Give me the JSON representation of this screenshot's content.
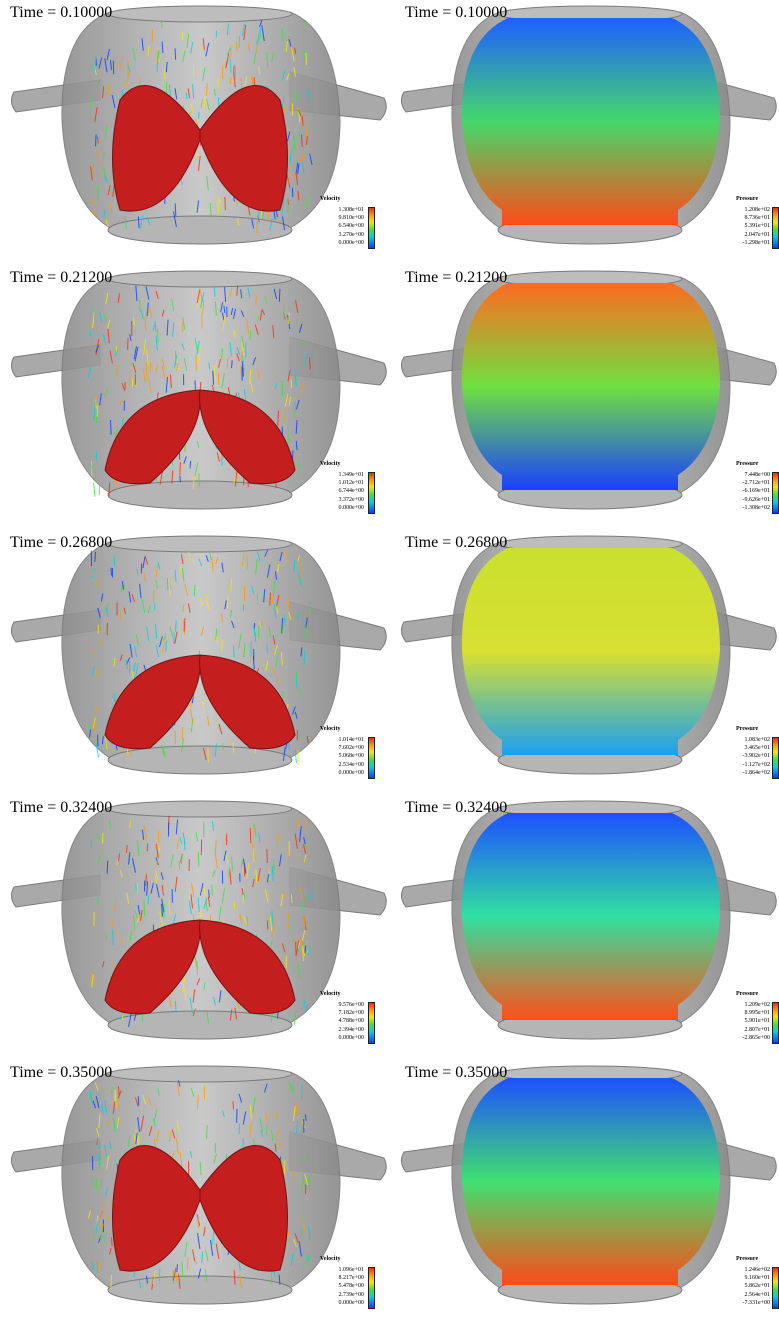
{
  "rows": [
    {
      "time_label": "Time = 0.10000",
      "velocity": {
        "title": "Velocity",
        "values": [
          "1.308e+01",
          "9.810e+00",
          "6.540e+00",
          "3.270e+00",
          "0.000e+00"
        ]
      },
      "pressure": {
        "title": "Pressure",
        "values": [
          "1.208e+02",
          "8.736e+01",
          "5.391e+01",
          "2.047e+01",
          "-1.298e+01"
        ]
      }
    },
    {
      "time_label": "Time = 0.21200",
      "velocity": {
        "title": "Velocity",
        "values": [
          "1.349e+01",
          "1.012e+01",
          "6.744e+00",
          "3.372e+00",
          "0.000e+00"
        ]
      },
      "pressure": {
        "title": "Pressure",
        "values": [
          "7.448e+00",
          "-2.712e+01",
          "-6.169e+01",
          "-9.626e+01",
          "-1.308e+02"
        ]
      }
    },
    {
      "time_label": "Time = 0.26800",
      "velocity": {
        "title": "Velocity",
        "values": [
          "1.014e+01",
          "7.602e+00",
          "5.068e+00",
          "2.534e+00",
          "0.000e+00"
        ]
      },
      "pressure": {
        "title": "Pressure",
        "values": [
          "1.083e+02",
          "3.465e+01",
          "-3.902e+01",
          "-1.127e+02",
          "-1.864e+02"
        ]
      }
    },
    {
      "time_label": "Time = 0.32400",
      "velocity": {
        "title": "Velocity",
        "values": [
          "9.576e+00",
          "7.182e+00",
          "4.788e+00",
          "2.394e+00",
          "0.000e+00"
        ]
      },
      "pressure": {
        "title": "Pressure",
        "values": [
          "1.209e+02",
          "8.995e+01",
          "5.901e+01",
          "2.807e+01",
          "-2.865e+00"
        ]
      }
    },
    {
      "time_label": "Time = 0.35000",
      "velocity": {
        "title": "Velocity",
        "values": [
          "1.096e+01",
          "8.217e+00",
          "5.478e+00",
          "2.739e+00",
          "0.000e+00"
        ]
      },
      "pressure": {
        "title": "Pressure",
        "values": [
          "1.246e+02",
          "9.160e+01",
          "5.862e+01",
          "2.564e+01",
          "-7.331e+00"
        ]
      }
    }
  ],
  "colors": {
    "vessel": "#a9a9a9",
    "leaflet": "#c41e1e",
    "colormap": [
      "#0040ff",
      "#00d0e8",
      "#3ee03e",
      "#f5e800",
      "#ff9a00",
      "#ff2a00"
    ]
  },
  "pressure_fields": [
    {
      "top": "#1e5fff",
      "mid": "#45d86a",
      "bottom": "#ff4a18"
    },
    {
      "top": "#ff6a20",
      "mid": "#70e040",
      "bottom": "#1a40ff"
    },
    {
      "top": "#c9e030",
      "mid": "#d8e030",
      "bottom": "#1aa0f0"
    },
    {
      "top": "#1e50ff",
      "mid": "#30e0a0",
      "bottom": "#ff5018"
    },
    {
      "top": "#1e50ff",
      "mid": "#40e070",
      "bottom": "#ff4a18"
    }
  ]
}
